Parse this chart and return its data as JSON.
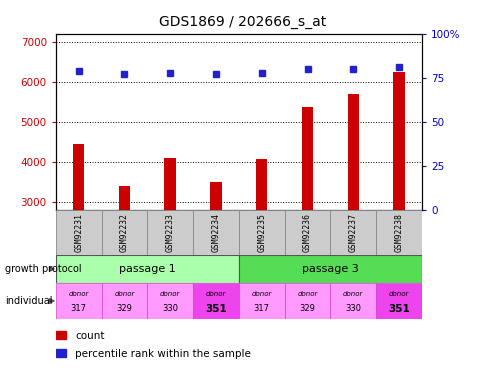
{
  "title": "GDS1869 / 202666_s_at",
  "samples": [
    "GSM92231",
    "GSM92232",
    "GSM92233",
    "GSM92234",
    "GSM92235",
    "GSM92236",
    "GSM92237",
    "GSM92238"
  ],
  "counts": [
    4450,
    3400,
    4100,
    3500,
    4080,
    5380,
    5700,
    6250
  ],
  "percentiles": [
    79,
    77,
    78,
    77,
    78,
    80,
    80,
    81
  ],
  "ylim_left": [
    2800,
    7200
  ],
  "ylim_right": [
    0,
    100
  ],
  "yticks_left": [
    3000,
    4000,
    5000,
    6000,
    7000
  ],
  "yticks_right": [
    0,
    25,
    50,
    75,
    100
  ],
  "bar_color": "#cc0000",
  "dot_color": "#2222cc",
  "passage1_color": "#aaffaa",
  "passage3_color": "#55dd55",
  "donor_light_color": "#ff99ff",
  "donor_dark_color": "#ee44ee",
  "sample_box_color": "#cccccc",
  "donor_numbers": [
    "317",
    "329",
    "330",
    "351",
    "317",
    "329",
    "330",
    "351"
  ],
  "donor_bold": [
    false,
    false,
    false,
    true,
    false,
    false,
    false,
    true
  ],
  "growth_protocol_label": "growth protocol",
  "individual_label": "individual",
  "passage1_label": "passage 1",
  "passage3_label": "passage 3",
  "legend_count": "count",
  "legend_percentile": "percentile rank within the sample",
  "bg_color": "#ffffff",
  "title_fontsize": 10,
  "axis_tick_color_left": "#cc0000",
  "axis_tick_color_right": "#0000cc",
  "bar_width": 0.25,
  "dot_size": 5
}
